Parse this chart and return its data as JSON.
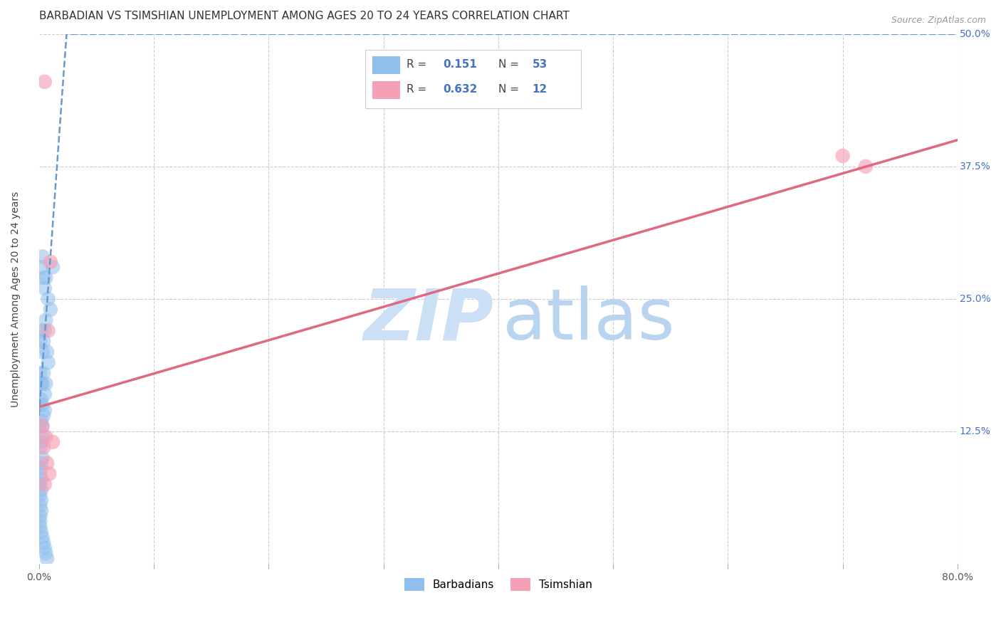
{
  "title": "BARBADIAN VS TSIMSHIAN UNEMPLOYMENT AMONG AGES 20 TO 24 YEARS CORRELATION CHART",
  "source": "Source: ZipAtlas.com",
  "ylabel": "Unemployment Among Ages 20 to 24 years",
  "xlim": [
    0,
    0.8
  ],
  "ylim": [
    0,
    0.5
  ],
  "xticks": [
    0.0,
    0.1,
    0.2,
    0.3,
    0.4,
    0.5,
    0.6,
    0.7,
    0.8
  ],
  "ytick_values": [
    0.0,
    0.125,
    0.25,
    0.375,
    0.5
  ],
  "ytick_labels": [
    "",
    "12.5%",
    "25.0%",
    "37.5%",
    "50.0%"
  ],
  "barbadians": {
    "x": [
      0.002,
      0.003,
      0.004,
      0.005,
      0.006,
      0.008,
      0.01,
      0.012,
      0.001,
      0.002,
      0.003,
      0.004,
      0.005,
      0.006,
      0.007,
      0.008,
      0.001,
      0.002,
      0.003,
      0.004,
      0.005,
      0.006,
      0.001,
      0.002,
      0.003,
      0.004,
      0.005,
      0.001,
      0.002,
      0.003,
      0.004,
      0.001,
      0.002,
      0.003,
      0.001,
      0.002,
      0.001,
      0.002,
      0.001,
      0.002,
      0.001,
      0.002,
      0.001,
      0.002,
      0.001,
      0.001,
      0.001,
      0.002,
      0.003,
      0.004,
      0.005,
      0.006,
      0.007
    ],
    "y": [
      0.28,
      0.29,
      0.27,
      0.26,
      0.27,
      0.25,
      0.24,
      0.28,
      0.21,
      0.22,
      0.2,
      0.21,
      0.22,
      0.23,
      0.2,
      0.19,
      0.18,
      0.17,
      0.17,
      0.18,
      0.16,
      0.17,
      0.15,
      0.155,
      0.15,
      0.14,
      0.145,
      0.13,
      0.135,
      0.13,
      0.12,
      0.11,
      0.115,
      0.1,
      0.09,
      0.095,
      0.085,
      0.08,
      0.075,
      0.07,
      0.065,
      0.06,
      0.055,
      0.05,
      0.045,
      0.04,
      0.035,
      0.03,
      0.025,
      0.02,
      0.015,
      0.01,
      0.005
    ],
    "color": "#90bfee",
    "R": 0.151,
    "N": 53,
    "trend_color": "#6699cc",
    "trend_slope": 15.0,
    "trend_intercept": 0.14
  },
  "tsimshian": {
    "x": [
      0.005,
      0.01,
      0.008,
      0.003,
      0.006,
      0.012,
      0.7,
      0.72,
      0.004,
      0.007,
      0.009,
      0.005
    ],
    "y": [
      0.455,
      0.285,
      0.22,
      0.13,
      0.12,
      0.115,
      0.385,
      0.375,
      0.11,
      0.095,
      0.085,
      0.075
    ],
    "color": "#f4a0b5",
    "R": 0.632,
    "N": 12,
    "trend_color": "#e06880",
    "trend_slope": 0.315,
    "trend_intercept": 0.148
  },
  "watermark_zip_color": "#cce0f5",
  "watermark_atlas_color": "#b8d4ee",
  "legend_R_color": "#4472c4",
  "legend_N_color": "#4472c4",
  "title_fontsize": 11,
  "axis_label_fontsize": 10,
  "tick_label_fontsize": 10,
  "right_tick_color": "#4472c4",
  "background_color": "#ffffff",
  "grid_color": "#cccccc"
}
